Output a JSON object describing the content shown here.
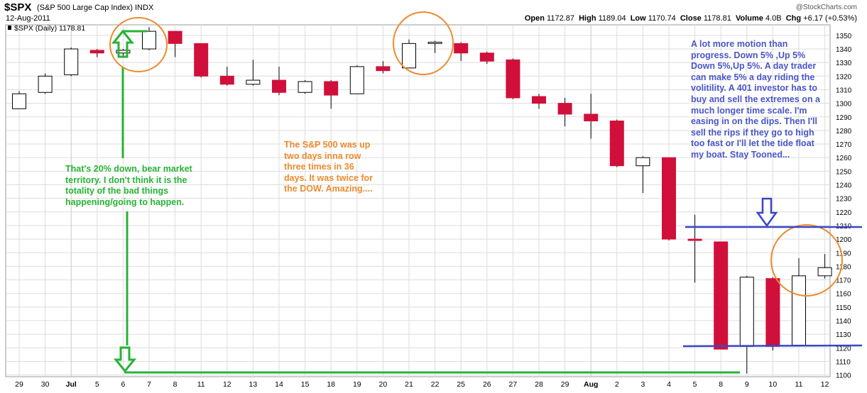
{
  "header": {
    "symbol": "$SPX",
    "index_name": "(S&P 500 Large Cap Index) INDX",
    "date": "12-Aug-2011",
    "brand": "@StockCharts.com",
    "series_label": "$SPX (Daily) 1178.81",
    "ohlc": {
      "open_label": "Open",
      "open": "1172.87",
      "high_label": "High",
      "high": "1189.04",
      "low_label": "Low",
      "low": "1170.74",
      "close_label": "Close",
      "close": "1178.81",
      "volume_label": "Volume",
      "volume": "4.0B",
      "chg_label": "Chg",
      "chg": "+6.17 (+0.53%)"
    }
  },
  "annotations": {
    "note1": "That's 20% down,  bear market territory.  I don't think it is the totality of the bad things happening/going to happen.",
    "note2": "The S&P 500  was up two days inna row three times in 36 days.  It was twice for the DOW. Amazing....",
    "note3": "A lot more motion than progress.  Down 5% ,Up 5% Down 5%,Up 5%.  A day trader can make 5% a day riding the volitility.  A 401 investor has to buy and sell the extremes on a much longer time scale.  I'm easing in on the dips. Then I'll sell the rips if they go to high too fast or I'll let the tide float my boat. Stay Tooned..."
  },
  "colors": {
    "up": "#ffffff",
    "down": "#d0103a",
    "grid": "#dddddd",
    "green": "#27b334",
    "orange": "#ed8a2e",
    "blue": "#3a46c4"
  },
  "chart_data": {
    "type": "candlestick",
    "title": "$SPX (S&P 500 Large Cap Index) INDX",
    "ylim": [
      1095,
      1355
    ],
    "grid": true,
    "y_ticks": [
      1100,
      1110,
      1120,
      1130,
      1140,
      1150,
      1160,
      1170,
      1180,
      1190,
      1200,
      1210,
      1220,
      1230,
      1240,
      1250,
      1260,
      1270,
      1280,
      1290,
      1300,
      1310,
      1320,
      1330,
      1340,
      1350
    ],
    "x_labels": [
      "29",
      "30",
      "Jul",
      "5",
      "6",
      "7",
      "8",
      "11",
      "12",
      "13",
      "14",
      "15",
      "18",
      "19",
      "20",
      "21",
      "22",
      "25",
      "26",
      "27",
      "28",
      "29",
      "Aug",
      "2",
      "3",
      "4",
      "5",
      "8",
      "9",
      "10",
      "11",
      "12"
    ],
    "candles": [
      {
        "o": 1296,
        "h": 1309,
        "l": 1296,
        "c": 1307
      },
      {
        "o": 1308,
        "h": 1322,
        "l": 1307,
        "c": 1320
      },
      {
        "o": 1321,
        "h": 1341,
        "l": 1320,
        "c": 1340
      },
      {
        "o": 1339,
        "h": 1340,
        "l": 1334,
        "c": 1337
      },
      {
        "o": 1337,
        "h": 1340,
        "l": 1334,
        "c": 1339
      },
      {
        "o": 1340,
        "h": 1356,
        "l": 1339,
        "c": 1353
      },
      {
        "o": 1353,
        "h": 1353,
        "l": 1334,
        "c": 1344
      },
      {
        "o": 1344,
        "h": 1344,
        "l": 1319,
        "c": 1320
      },
      {
        "o": 1320,
        "h": 1327,
        "l": 1313,
        "c": 1314
      },
      {
        "o": 1314,
        "h": 1332,
        "l": 1313,
        "c": 1317
      },
      {
        "o": 1317,
        "h": 1327,
        "l": 1306,
        "c": 1308
      },
      {
        "o": 1308,
        "h": 1317,
        "l": 1307,
        "c": 1316
      },
      {
        "o": 1316,
        "h": 1317,
        "l": 1296,
        "c": 1306
      },
      {
        "o": 1307,
        "h": 1328,
        "l": 1307,
        "c": 1327
      },
      {
        "o": 1327,
        "h": 1331,
        "l": 1322,
        "c": 1324
      },
      {
        "o": 1326,
        "h": 1347,
        "l": 1326,
        "c": 1344
      },
      {
        "o": 1344,
        "h": 1346,
        "l": 1337,
        "c": 1345
      },
      {
        "o": 1344,
        "h": 1345,
        "l": 1331,
        "c": 1337
      },
      {
        "o": 1337,
        "h": 1338,
        "l": 1329,
        "c": 1331
      },
      {
        "o": 1332,
        "h": 1333,
        "l": 1303,
        "c": 1304
      },
      {
        "o": 1305,
        "h": 1307,
        "l": 1296,
        "c": 1300
      },
      {
        "o": 1300,
        "h": 1304,
        "l": 1283,
        "c": 1292
      },
      {
        "o": 1292,
        "h": 1307,
        "l": 1274,
        "c": 1287
      },
      {
        "o": 1287,
        "h": 1288,
        "l": 1253,
        "c": 1254
      },
      {
        "o": 1254,
        "h": 1261,
        "l": 1234,
        "c": 1260
      },
      {
        "o": 1260,
        "h": 1260,
        "l": 1199,
        "c": 1200
      },
      {
        "o": 1200,
        "h": 1218,
        "l": 1168,
        "c": 1199
      },
      {
        "o": 1198,
        "h": 1198,
        "l": 1119,
        "c": 1119
      },
      {
        "o": 1121,
        "h": 1173,
        "l": 1101,
        "c": 1172
      },
      {
        "o": 1171,
        "h": 1172,
        "l": 1118,
        "c": 1121
      },
      {
        "o": 1122,
        "h": 1186,
        "l": 1122,
        "c": 1173
      },
      {
        "o": 1173,
        "h": 1189,
        "l": 1171,
        "c": 1179
      }
    ]
  }
}
